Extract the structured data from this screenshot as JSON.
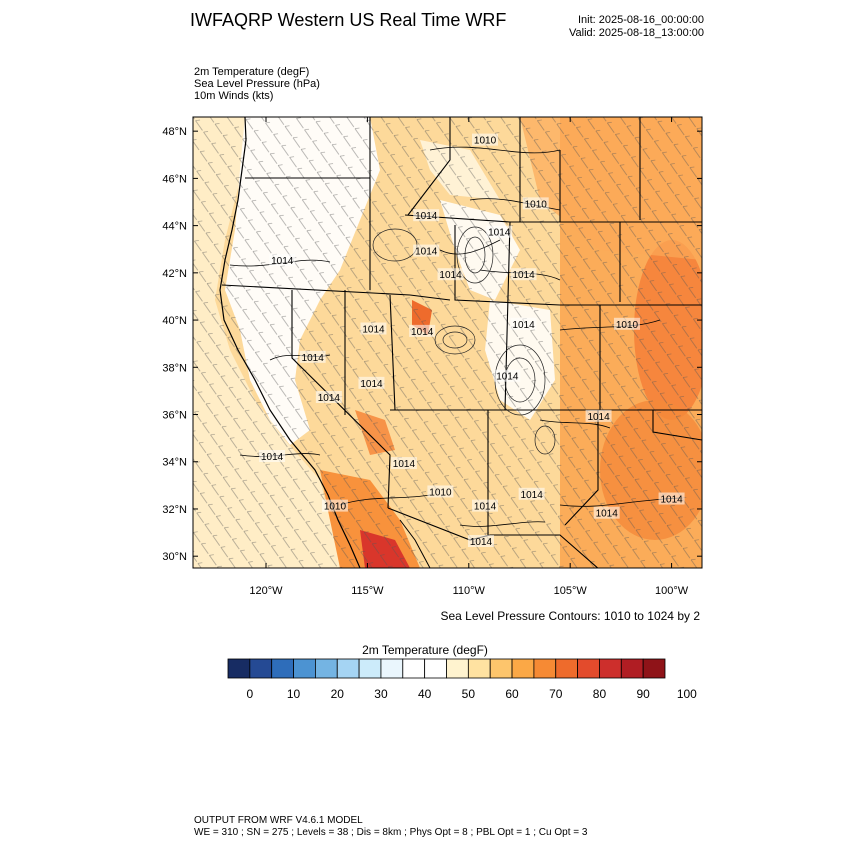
{
  "header": {
    "title": "IWFAQRP Western US Real Time WRF",
    "init": "Init: 2025-08-16_00:00:00",
    "valid": "Valid: 2025-08-18_13:00:00"
  },
  "fields": [
    "2m Temperature   (degF)",
    "Sea Level Pressure   (hPa)",
    "10m Winds   (kts)"
  ],
  "map": {
    "lat_labels": [
      "48°N",
      "46°N",
      "44°N",
      "42°N",
      "40°N",
      "38°N",
      "36°N",
      "34°N",
      "32°N",
      "30°N"
    ],
    "lon_labels": [
      "120°W",
      "115°W",
      "110°W",
      "105°W",
      "100°W"
    ],
    "lat_range": [
      29.5,
      48.6
    ],
    "lon_range": [
      -123.6,
      -98.5
    ],
    "pressure_labels": [
      {
        "text": "1010",
        "lon": -109.2,
        "lat": 47.6
      },
      {
        "text": "1010",
        "lon": -106.7,
        "lat": 44.9
      },
      {
        "text": "1014",
        "lon": -119.2,
        "lat": 42.5
      },
      {
        "text": "1014",
        "lon": -112.1,
        "lat": 44.4
      },
      {
        "text": "1014",
        "lon": -112.1,
        "lat": 42.9
      },
      {
        "text": "1014",
        "lon": -108.5,
        "lat": 43.7
      },
      {
        "text": "1014",
        "lon": -110.9,
        "lat": 41.9
      },
      {
        "text": "1014",
        "lon": -107.3,
        "lat": 41.9
      },
      {
        "text": "1014",
        "lon": -114.7,
        "lat": 39.6
      },
      {
        "text": "1014",
        "lon": -112.3,
        "lat": 39.5
      },
      {
        "text": "1010",
        "lon": -102.2,
        "lat": 39.8
      },
      {
        "text": "1014",
        "lon": -117.7,
        "lat": 38.4
      },
      {
        "text": "1014",
        "lon": -107.3,
        "lat": 39.8
      },
      {
        "text": "1014",
        "lon": -108.1,
        "lat": 37.6
      },
      {
        "text": "1014",
        "lon": -114.8,
        "lat": 37.3
      },
      {
        "text": "1014",
        "lon": -116.9,
        "lat": 36.7
      },
      {
        "text": "1014",
        "lon": -103.6,
        "lat": 35.9
      },
      {
        "text": "1014",
        "lon": -119.7,
        "lat": 34.2
      },
      {
        "text": "1014",
        "lon": -113.2,
        "lat": 33.9
      },
      {
        "text": "1010",
        "lon": -111.4,
        "lat": 32.7
      },
      {
        "text": "1010",
        "lon": -116.6,
        "lat": 32.1
      },
      {
        "text": "1014",
        "lon": -109.2,
        "lat": 32.1
      },
      {
        "text": "1014",
        "lon": -106.9,
        "lat": 32.6
      },
      {
        "text": "1014",
        "lon": -103.2,
        "lat": 31.8
      },
      {
        "text": "1014",
        "lon": -100.0,
        "lat": 32.4
      },
      {
        "text": "1014",
        "lon": -109.4,
        "lat": 30.6
      }
    ],
    "contour_note": "Sea Level Pressure Contours: 1010 to 1024 by 2"
  },
  "colorbar": {
    "title": "2m Temperature  (degF)",
    "colors": [
      "#172c63",
      "#254a94",
      "#2e6dba",
      "#4c93d2",
      "#74b4e3",
      "#a5d4f3",
      "#ccebfa",
      "#eaf6fd",
      "#ffffff",
      "#ffffff",
      "#fff3cf",
      "#ffe2a1",
      "#fdc56c",
      "#fba846",
      "#f68a34",
      "#ee6b2c",
      "#e34b2c",
      "#cd2f2c",
      "#b01d23",
      "#8f1318"
    ],
    "tick_labels": [
      "0",
      "10",
      "20",
      "30",
      "40",
      "50",
      "60",
      "70",
      "80",
      "90",
      "100"
    ]
  },
  "footer": {
    "line1": "OUTPUT FROM WRF V4.6.1 MODEL",
    "line2": "WE = 310 ; SN = 275 ; Levels = 38 ; Dis = 8km ; Phys Opt = 8 ; PBL Opt = 1 ; Cu Opt = 3"
  }
}
